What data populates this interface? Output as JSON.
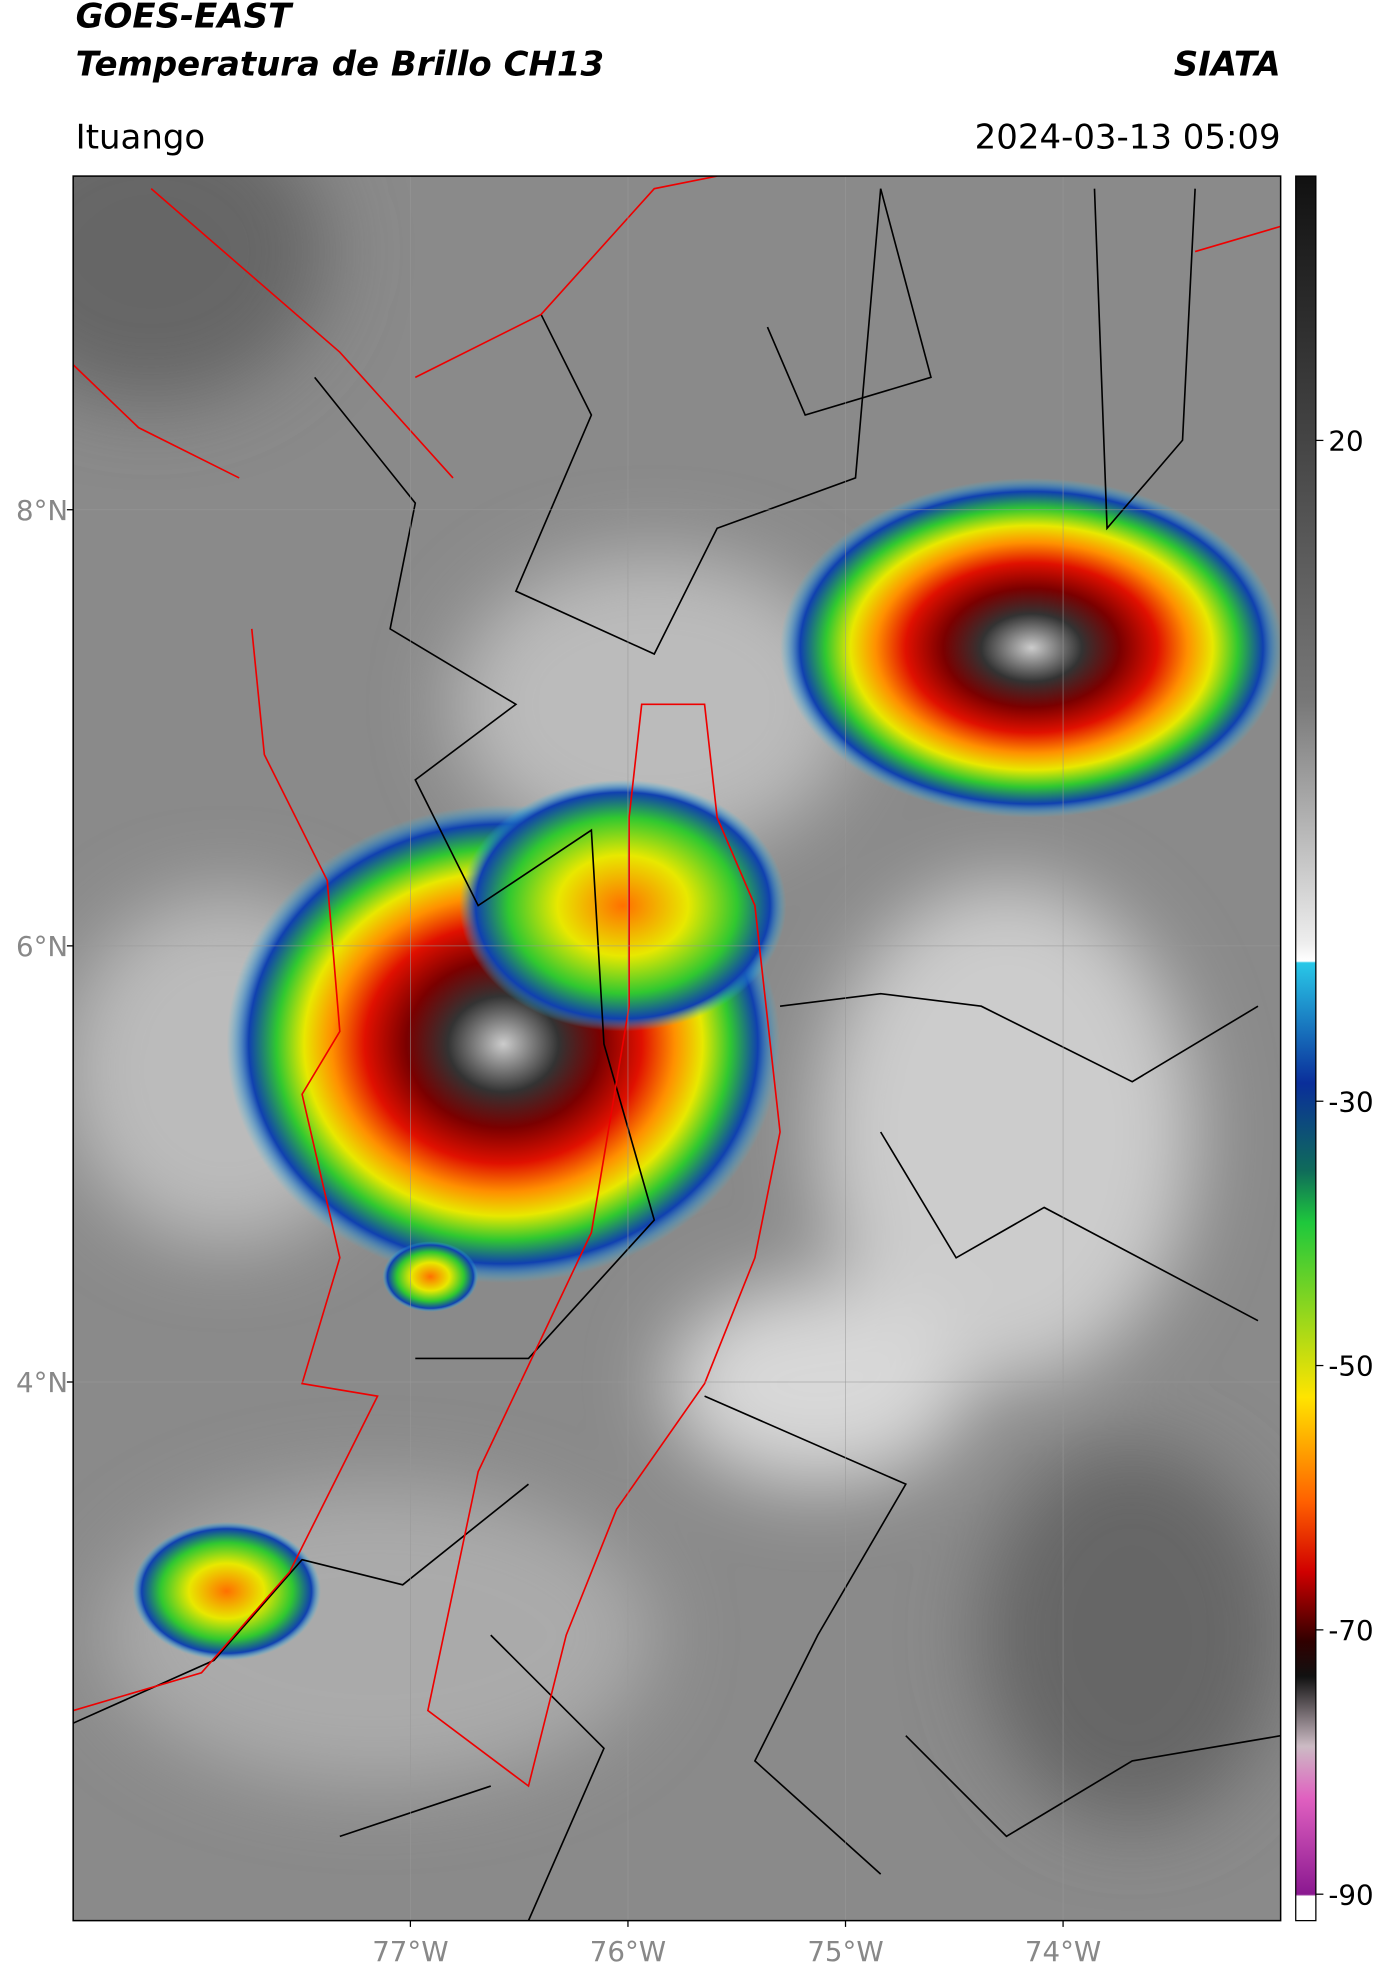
{
  "header": {
    "title_line1": "GOES-EAST",
    "title_line2": "Temperatura de Brillo CH13",
    "brand": "SIATA",
    "location": "Ituango",
    "datetime": "2024-03-13 05:09"
  },
  "map": {
    "xlim": [
      -78.55,
      -73.0
    ],
    "ylim": [
      1.53,
      9.53
    ],
    "yticks": [
      {
        "value": 8,
        "label": "8°N"
      },
      {
        "value": 6,
        "label": "6°N"
      },
      {
        "value": 4,
        "label": "4°N"
      }
    ],
    "xticks": [
      {
        "value": -77,
        "label": "77°W"
      },
      {
        "value": -76,
        "label": "76°W"
      },
      {
        "value": -75,
        "label": "75°W"
      },
      {
        "value": -74,
        "label": "74°W"
      }
    ]
  },
  "colorbar": {
    "lim": [
      -92,
      40
    ],
    "ticks": [
      20,
      -30,
      -50,
      -70,
      -90
    ]
  }
}
